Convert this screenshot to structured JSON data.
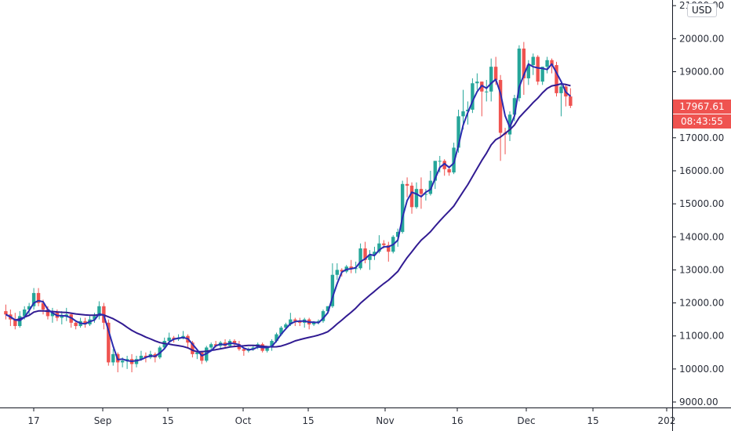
{
  "chart_data": {
    "type": "candlestick",
    "currency": "USD",
    "last_price": "17967.61",
    "countdown": "08:43:55",
    "ylim": [
      8800,
      21200
    ],
    "y_ticks": [
      "9000.00",
      "10000.00",
      "11000.00",
      "12000.00",
      "13000.00",
      "14000.00",
      "15000.00",
      "16000.00",
      "17000.00",
      "18000.00",
      "19000.00",
      "20000.00",
      "21000.00"
    ],
    "x_ticks": [
      "17",
      "Sep",
      "15",
      "Oct",
      "15",
      "Nov",
      "16",
      "Dec",
      "15",
      "202"
    ],
    "colors": {
      "up": "#26a69a",
      "down": "#ef5350",
      "ma_fast": "#2b2cb0",
      "ma_slow": "#311b92",
      "price_tag": "#ef5350"
    },
    "candles": [
      [
        "Aug 12",
        11750,
        11950,
        11500,
        11650
      ],
      [
        "Aug 13",
        11650,
        11800,
        11300,
        11500
      ],
      [
        "Aug 14",
        11500,
        11700,
        11200,
        11300
      ],
      [
        "Aug 15",
        11300,
        11750,
        11250,
        11600
      ],
      [
        "Aug 16",
        11600,
        11900,
        11500,
        11800
      ],
      [
        "Aug 17",
        11800,
        12000,
        11650,
        11900
      ],
      [
        "Aug 18",
        11900,
        12450,
        11800,
        12300
      ],
      [
        "Aug 19",
        12300,
        12450,
        11900,
        12000
      ],
      [
        "Aug 20",
        12000,
        12100,
        11650,
        11800
      ],
      [
        "Aug 21",
        11800,
        11900,
        11500,
        11600
      ],
      [
        "Aug 22",
        11600,
        11850,
        11400,
        11700
      ],
      [
        "Aug 23",
        11700,
        11800,
        11450,
        11550
      ],
      [
        "Aug 24",
        11550,
        11750,
        11350,
        11600
      ],
      [
        "Aug 25",
        11600,
        11850,
        11450,
        11650
      ],
      [
        "Aug 26",
        11650,
        11700,
        11250,
        11400
      ],
      [
        "Aug 27",
        11400,
        11450,
        11200,
        11300
      ],
      [
        "Aug 28",
        11300,
        11550,
        11250,
        11450
      ],
      [
        "Aug 29",
        11450,
        11550,
        11250,
        11350
      ],
      [
        "Aug 30",
        11350,
        11600,
        11300,
        11500
      ],
      [
        "Aug 31",
        11500,
        11700,
        11400,
        11600
      ],
      [
        "Sep 1",
        11600,
        12050,
        11500,
        11900
      ],
      [
        "Sep 2",
        11900,
        12000,
        11200,
        11400
      ],
      [
        "Sep 3",
        11400,
        11500,
        10100,
        10200
      ],
      [
        "Sep 4",
        10200,
        10600,
        10100,
        10450
      ],
      [
        "Sep 5",
        10450,
        10500,
        9900,
        10200
      ],
      [
        "Sep 6",
        10200,
        10350,
        10050,
        10250
      ],
      [
        "Sep 7",
        10250,
        10400,
        10000,
        10300
      ],
      [
        "Sep 8",
        10300,
        10450,
        9900,
        10150
      ],
      [
        "Sep 9",
        10150,
        10400,
        10050,
        10300
      ],
      [
        "Sep 10",
        10300,
        10550,
        10250,
        10400
      ],
      [
        "Sep 11",
        10400,
        10500,
        10200,
        10350
      ],
      [
        "Sep 12",
        10350,
        10550,
        10300,
        10450
      ],
      [
        "Sep 13",
        10450,
        10500,
        10200,
        10350
      ],
      [
        "Sep 14",
        10350,
        10700,
        10300,
        10650
      ],
      [
        "Sep 15",
        10650,
        10950,
        10600,
        10850
      ],
      [
        "Sep 16",
        10850,
        11100,
        10750,
        10950
      ],
      [
        "Sep 17",
        10950,
        11000,
        10800,
        10900
      ],
      [
        "Sep 18",
        10900,
        11050,
        10850,
        10950
      ],
      [
        "Sep 19",
        10950,
        11150,
        10900,
        11000
      ],
      [
        "Sep 20",
        11000,
        11050,
        10650,
        10800
      ],
      [
        "Sep 21",
        10800,
        10850,
        10350,
        10450
      ],
      [
        "Sep 22",
        10450,
        10550,
        10300,
        10500
      ],
      [
        "Sep 23",
        10500,
        10550,
        10150,
        10250
      ],
      [
        "Sep 24",
        10250,
        10700,
        10200,
        10650
      ],
      [
        "Sep 25",
        10650,
        10800,
        10550,
        10750
      ],
      [
        "Sep 26",
        10750,
        10850,
        10650,
        10700
      ],
      [
        "Sep 27",
        10700,
        10850,
        10600,
        10800
      ],
      [
        "Sep 28",
        10800,
        10900,
        10650,
        10700
      ],
      [
        "Sep 29",
        10700,
        10900,
        10650,
        10850
      ],
      [
        "Sep 30",
        10850,
        10900,
        10700,
        10750
      ],
      [
        "Oct 1",
        10750,
        10850,
        10550,
        10600
      ],
      [
        "Oct 2",
        10600,
        10650,
        10400,
        10550
      ],
      [
        "Oct 3",
        10550,
        10650,
        10500,
        10600
      ],
      [
        "Oct 4",
        10600,
        10700,
        10550,
        10650
      ],
      [
        "Oct 5",
        10650,
        10800,
        10600,
        10750
      ],
      [
        "Oct 6",
        10750,
        10800,
        10500,
        10550
      ],
      [
        "Oct 7",
        10550,
        10700,
        10500,
        10650
      ],
      [
        "Oct 8",
        10650,
        10900,
        10550,
        10850
      ],
      [
        "Oct 9",
        10850,
        11100,
        10800,
        11050
      ],
      [
        "Oct 10",
        11050,
        11300,
        11000,
        11250
      ],
      [
        "Oct 11",
        11250,
        11400,
        11200,
        11350
      ],
      [
        "Oct 12",
        11350,
        11700,
        11300,
        11500
      ],
      [
        "Oct 13",
        11500,
        11550,
        11300,
        11450
      ],
      [
        "Oct 14",
        11450,
        11550,
        11300,
        11400
      ],
      [
        "Oct 15",
        11400,
        11550,
        11250,
        11500
      ],
      [
        "Oct 16",
        11500,
        11550,
        11200,
        11350
      ],
      [
        "Oct 17",
        11350,
        11450,
        11300,
        11400
      ],
      [
        "Oct 18",
        11400,
        11500,
        11350,
        11450
      ],
      [
        "Oct 19",
        11450,
        11800,
        11400,
        11750
      ],
      [
        "Oct 20",
        11750,
        11900,
        11700,
        11900
      ],
      [
        "Oct 21",
        11900,
        13200,
        11850,
        12850
      ],
      [
        "Oct 22",
        12850,
        13200,
        12700,
        13000
      ],
      [
        "Oct 23",
        13000,
        13050,
        12800,
        12950
      ],
      [
        "Oct 24",
        12950,
        13150,
        12900,
        13100
      ],
      [
        "Oct 25",
        13100,
        13300,
        12900,
        13050
      ],
      [
        "Oct 26",
        13050,
        13250,
        12900,
        13050
      ],
      [
        "Oct 27",
        13050,
        13800,
        13000,
        13650
      ],
      [
        "Oct 28",
        13650,
        13850,
        13200,
        13300
      ],
      [
        "Oct 29",
        13300,
        13600,
        13000,
        13450
      ],
      [
        "Oct 30",
        13450,
        13700,
        13300,
        13550
      ],
      [
        "Oct 31",
        13550,
        14050,
        13500,
        13800
      ],
      [
        "Nov 1",
        13800,
        13900,
        13650,
        13750
      ],
      [
        "Nov 2",
        13750,
        13850,
        13250,
        13550
      ],
      [
        "Nov 3",
        13550,
        14050,
        13500,
        14000
      ],
      [
        "Nov 4",
        14000,
        14250,
        13700,
        14150
      ],
      [
        "Nov 5",
        14150,
        15700,
        14100,
        15600
      ],
      [
        "Nov 6",
        15600,
        15800,
        15200,
        15550
      ],
      [
        "Nov 7",
        15550,
        15650,
        14700,
        14900
      ],
      [
        "Nov 8",
        14900,
        15650,
        14850,
        15450
      ],
      [
        "Nov 9",
        15450,
        15800,
        14850,
        15300
      ],
      [
        "Nov 10",
        15300,
        15450,
        15100,
        15300
      ],
      [
        "Nov 11",
        15300,
        16000,
        15250,
        15700
      ],
      [
        "Nov 12",
        15700,
        16300,
        15450,
        16300
      ],
      [
        "Nov 13",
        16300,
        16450,
        15950,
        16300
      ],
      [
        "Nov 14",
        16300,
        16350,
        15850,
        16050
      ],
      [
        "Nov 15",
        16050,
        16150,
        15850,
        15950
      ],
      [
        "Nov 16",
        15950,
        16850,
        15900,
        16700
      ],
      [
        "Nov 17",
        16700,
        17850,
        16550,
        17650
      ],
      [
        "Nov 18",
        17650,
        18450,
        17250,
        17800
      ],
      [
        "Nov 19",
        17800,
        18100,
        17400,
        17850
      ],
      [
        "Nov 20",
        17850,
        18800,
        17750,
        18650
      ],
      [
        "Nov 21",
        18650,
        18950,
        18450,
        18700
      ],
      [
        "Nov 22",
        18700,
        18700,
        17650,
        18400
      ],
      [
        "Nov 23",
        18400,
        18750,
        18100,
        18400
      ],
      [
        "Nov 24",
        18400,
        19400,
        18100,
        19150
      ],
      [
        "Nov 25",
        19150,
        19450,
        18600,
        18750
      ],
      [
        "Nov 26",
        18750,
        18900,
        16300,
        17150
      ],
      [
        "Nov 27",
        17150,
        17300,
        16500,
        17100
      ],
      [
        "Nov 28",
        17100,
        17800,
        16900,
        17700
      ],
      [
        "Nov 29",
        17700,
        18300,
        17500,
        18200
      ],
      [
        "Nov 30",
        18200,
        19800,
        18100,
        19700
      ],
      [
        "Dec 1",
        19700,
        19900,
        18300,
        18800
      ],
      [
        "Dec 2",
        18800,
        19350,
        18600,
        19200
      ],
      [
        "Dec 3",
        19200,
        19550,
        18900,
        19450
      ],
      [
        "Dec 4",
        19450,
        19500,
        18600,
        18700
      ],
      [
        "Dec 5",
        18700,
        19150,
        18600,
        19150
      ],
      [
        "Dec 6",
        19150,
        19450,
        18950,
        19350
      ],
      [
        "Dec 7",
        19350,
        19400,
        18950,
        19200
      ],
      [
        "Dec 8",
        19200,
        19300,
        18250,
        18350
      ],
      [
        "Dec 9",
        18350,
        18650,
        17650,
        18550
      ],
      [
        "Dec 10",
        18550,
        18600,
        17950,
        18250
      ],
      [
        "Dec 11",
        18250,
        18500,
        17900,
        17967.61
      ]
    ]
  }
}
